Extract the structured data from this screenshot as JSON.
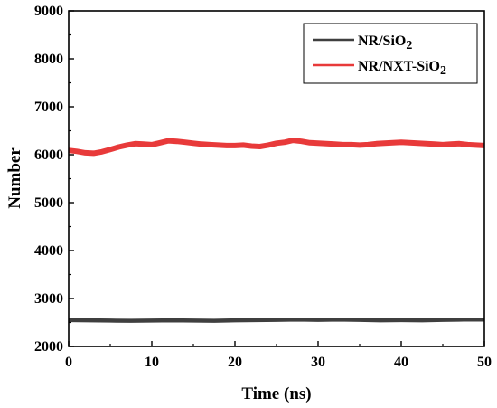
{
  "chart_data": {
    "type": "line",
    "xlabel": "Time (ns)",
    "ylabel": "Number",
    "xlim": [
      0,
      50
    ],
    "ylim": [
      2000,
      9000
    ],
    "x_ticks": [
      0,
      10,
      20,
      30,
      40,
      50
    ],
    "y_ticks": [
      2000,
      3000,
      4000,
      5000,
      6000,
      7000,
      8000,
      9000
    ],
    "x_tick_labels": [
      "0",
      "10",
      "20",
      "30",
      "40",
      "50"
    ],
    "y_tick_labels": [
      "2000",
      "3000",
      "4000",
      "5000",
      "6000",
      "7000",
      "8000",
      "9000"
    ],
    "grid": false,
    "legend_position": "top-right",
    "legend": [
      {
        "main": "NR/SiO",
        "sub": "2"
      },
      {
        "main": "NR/NXT-SiO",
        "sub": "2"
      }
    ],
    "series": [
      {
        "color": "#3f3f3f",
        "x": [
          0,
          2.5,
          5,
          7.5,
          10,
          12.5,
          15,
          17.5,
          20,
          22.5,
          25,
          27.5,
          30,
          32.5,
          35,
          37.5,
          40,
          42.5,
          45,
          47.5,
          50
        ],
        "values": [
          2550,
          2545,
          2540,
          2535,
          2540,
          2545,
          2540,
          2535,
          2545,
          2550,
          2555,
          2560,
          2555,
          2560,
          2555,
          2545,
          2550,
          2545,
          2555,
          2560,
          2560
        ]
      },
      {
        "color": "#e83a3a",
        "x": [
          0,
          1,
          2,
          3,
          4,
          5,
          6,
          7,
          8,
          9,
          10,
          11,
          12,
          13,
          14,
          15,
          16,
          17,
          18,
          19,
          20,
          21,
          22,
          23,
          24,
          25,
          26,
          27,
          28,
          29,
          30,
          31,
          32,
          33,
          34,
          35,
          36,
          37,
          38,
          39,
          40,
          41,
          42,
          43,
          44,
          45,
          46,
          47,
          48,
          49,
          50
        ],
        "values": [
          6090,
          6070,
          6040,
          6030,
          6060,
          6110,
          6160,
          6200,
          6230,
          6220,
          6210,
          6250,
          6290,
          6280,
          6260,
          6240,
          6220,
          6210,
          6200,
          6190,
          6190,
          6200,
          6180,
          6170,
          6200,
          6240,
          6260,
          6300,
          6280,
          6250,
          6240,
          6230,
          6220,
          6210,
          6210,
          6200,
          6210,
          6230,
          6240,
          6250,
          6260,
          6250,
          6240,
          6230,
          6220,
          6210,
          6220,
          6230,
          6210,
          6200,
          6190
        ]
      }
    ]
  }
}
